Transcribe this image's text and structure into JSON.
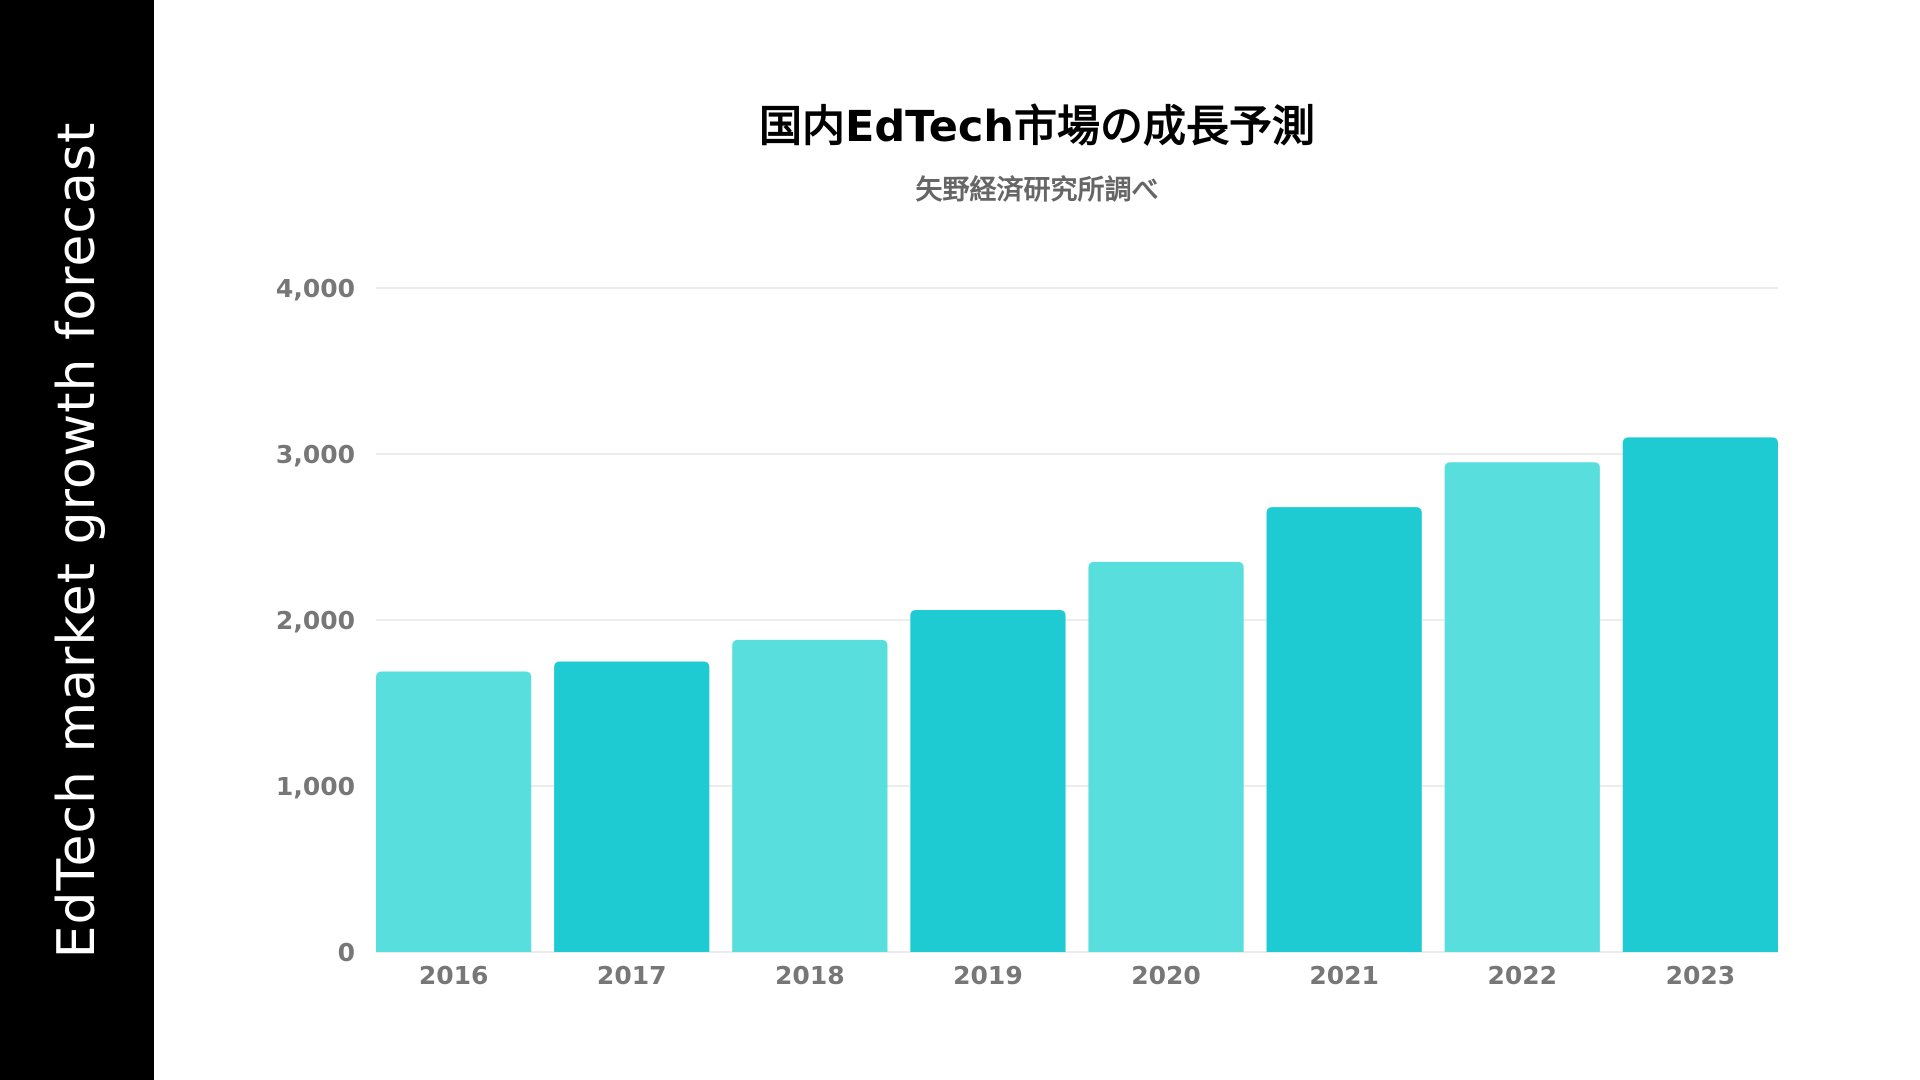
{
  "side_panel": {
    "title": "EdTech market growth forecast"
  },
  "colors": {
    "bar_light": "#59dede",
    "bar_dark": "#1fcbd3",
    "grid": "#e6e6e6",
    "axis_text": "#777777",
    "side_panel_bg": "#000000"
  },
  "chart_data": {
    "type": "bar",
    "title": "国内EdTech市場の成長予測",
    "subtitle": "矢野経済研究所調べ",
    "xlabel": "",
    "ylabel": "",
    "categories": [
      "2016",
      "2017",
      "2018",
      "2019",
      "2020",
      "2021",
      "2022",
      "2023"
    ],
    "values": [
      1690,
      1750,
      1880,
      2060,
      2350,
      2680,
      2950,
      3100
    ],
    "bar_colors": [
      "#59dede",
      "#1fcbd3",
      "#59dede",
      "#1fcbd3",
      "#59dede",
      "#1fcbd3",
      "#59dede",
      "#1fcbd3"
    ],
    "ylim": [
      0,
      4000
    ],
    "yticks": [
      0,
      1000,
      2000,
      3000,
      4000
    ],
    "ytick_labels": [
      "0",
      "1,000",
      "2,000",
      "3,000",
      "4,000"
    ],
    "grid": true,
    "legend": "none"
  }
}
